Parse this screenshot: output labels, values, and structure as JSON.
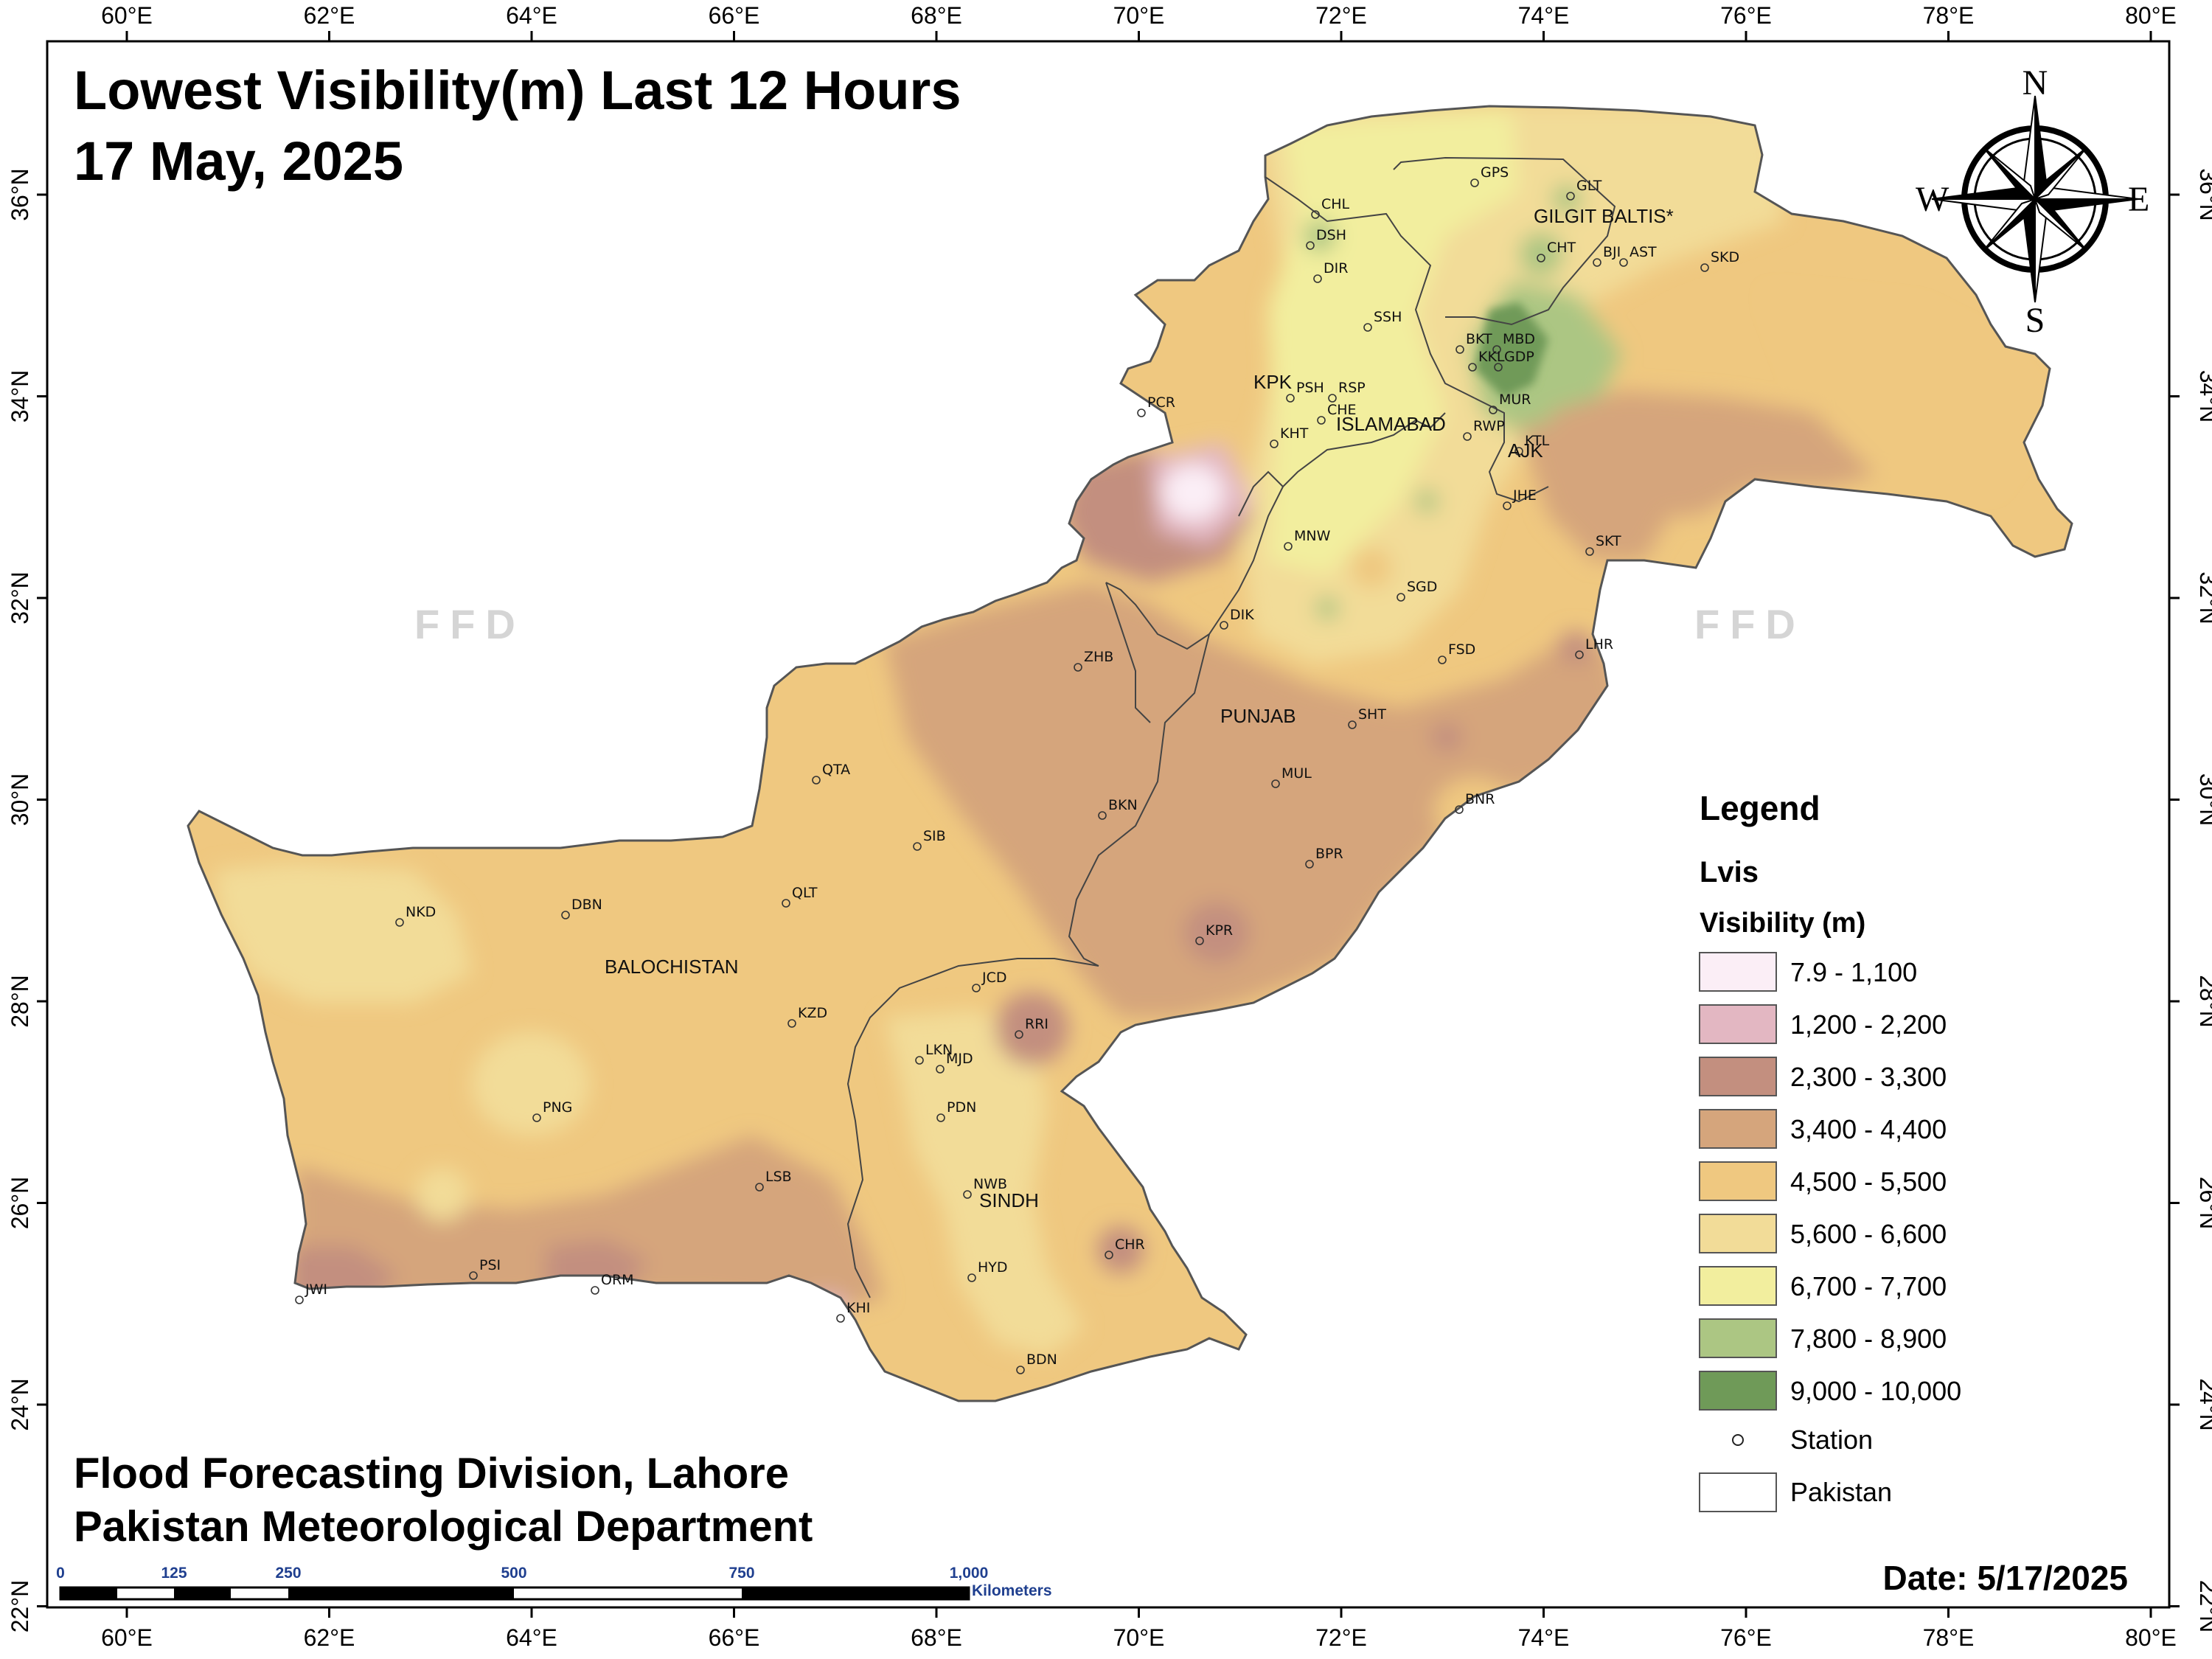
{
  "title": {
    "line1": "Lowest Visibility(m) Last 12 Hours",
    "line2": "17 May, 2025"
  },
  "credits": {
    "line1": "Flood Forecasting Division, Lahore",
    "line2": "Pakistan Meteorological Department"
  },
  "date_label": "Date: 5/17/2025",
  "watermark": "FFD",
  "longitude_ticks": [
    "60°E",
    "62°E",
    "64°E",
    "66°E",
    "68°E",
    "70°E",
    "72°E",
    "74°E",
    "76°E",
    "78°E",
    "80°E"
  ],
  "latitude_ticks": [
    "36°N",
    "34°N",
    "32°N",
    "30°N",
    "28°N",
    "26°N",
    "24°N",
    "22°N"
  ],
  "compass": {
    "n": "N",
    "s": "S",
    "e": "E",
    "w": "W"
  },
  "legend": {
    "title": "Legend",
    "layer": "Lvis",
    "subtitle": "Visibility (m)",
    "classes": [
      {
        "label": "7.9 - 1,100",
        "color": "#fbeef6"
      },
      {
        "label": "1,200 - 2,200",
        "color": "#e3b7c2"
      },
      {
        "label": "2,300 - 3,300",
        "color": "#c38f7f"
      },
      {
        "label": "3,400 - 4,400",
        "color": "#d5a57c"
      },
      {
        "label": "4,500 - 5,500",
        "color": "#efc880"
      },
      {
        "label": "5,600 - 6,600",
        "color": "#f2dc98"
      },
      {
        "label": "6,700 - 7,700",
        "color": "#f2ee9e"
      },
      {
        "label": "7,800 - 8,900",
        "color": "#acc683"
      },
      {
        "label": "9,000 - 10,000",
        "color": "#6f9a58"
      }
    ],
    "station_label": "Station",
    "pakistan_label": "Pakistan"
  },
  "scale_bar": {
    "labels": [
      "0",
      "125",
      "250",
      "500",
      "750",
      "1,000"
    ],
    "unit": "Kilometers"
  },
  "regions": [
    "GILGIT BALTIS*",
    "KPK",
    "ISLAMABAD",
    "AJK",
    "PUNJAB",
    "BALOCHISTAN",
    "SINDH"
  ],
  "stations": [
    "GPS",
    "GLT",
    "CHL",
    "DSH",
    "CHT",
    "BJI",
    "AST",
    "SKD",
    "DIR",
    "SSH",
    "BKT",
    "MBD",
    "KKL",
    "GDP",
    "PSH",
    "RSP",
    "MUR",
    "CHE",
    "KHT",
    "RWP",
    "KTL",
    "PCR",
    "JHE",
    "MNW",
    "SKT",
    "SGD",
    "DIK",
    "LHR",
    "FSD",
    "ZHB",
    "SHT",
    "QTA",
    "MUL",
    "BNR",
    "SIB",
    "BKN",
    "BPR",
    "NKD",
    "DBN",
    "QLT",
    "KPR",
    "JCD",
    "KZD",
    "RRI",
    "LKN",
    "MJD",
    "PNG",
    "PDN",
    "LSB",
    "NWB",
    "CHR",
    "HYD",
    "PSI",
    "ORM",
    "JWI",
    "KHI",
    "BDN"
  ]
}
